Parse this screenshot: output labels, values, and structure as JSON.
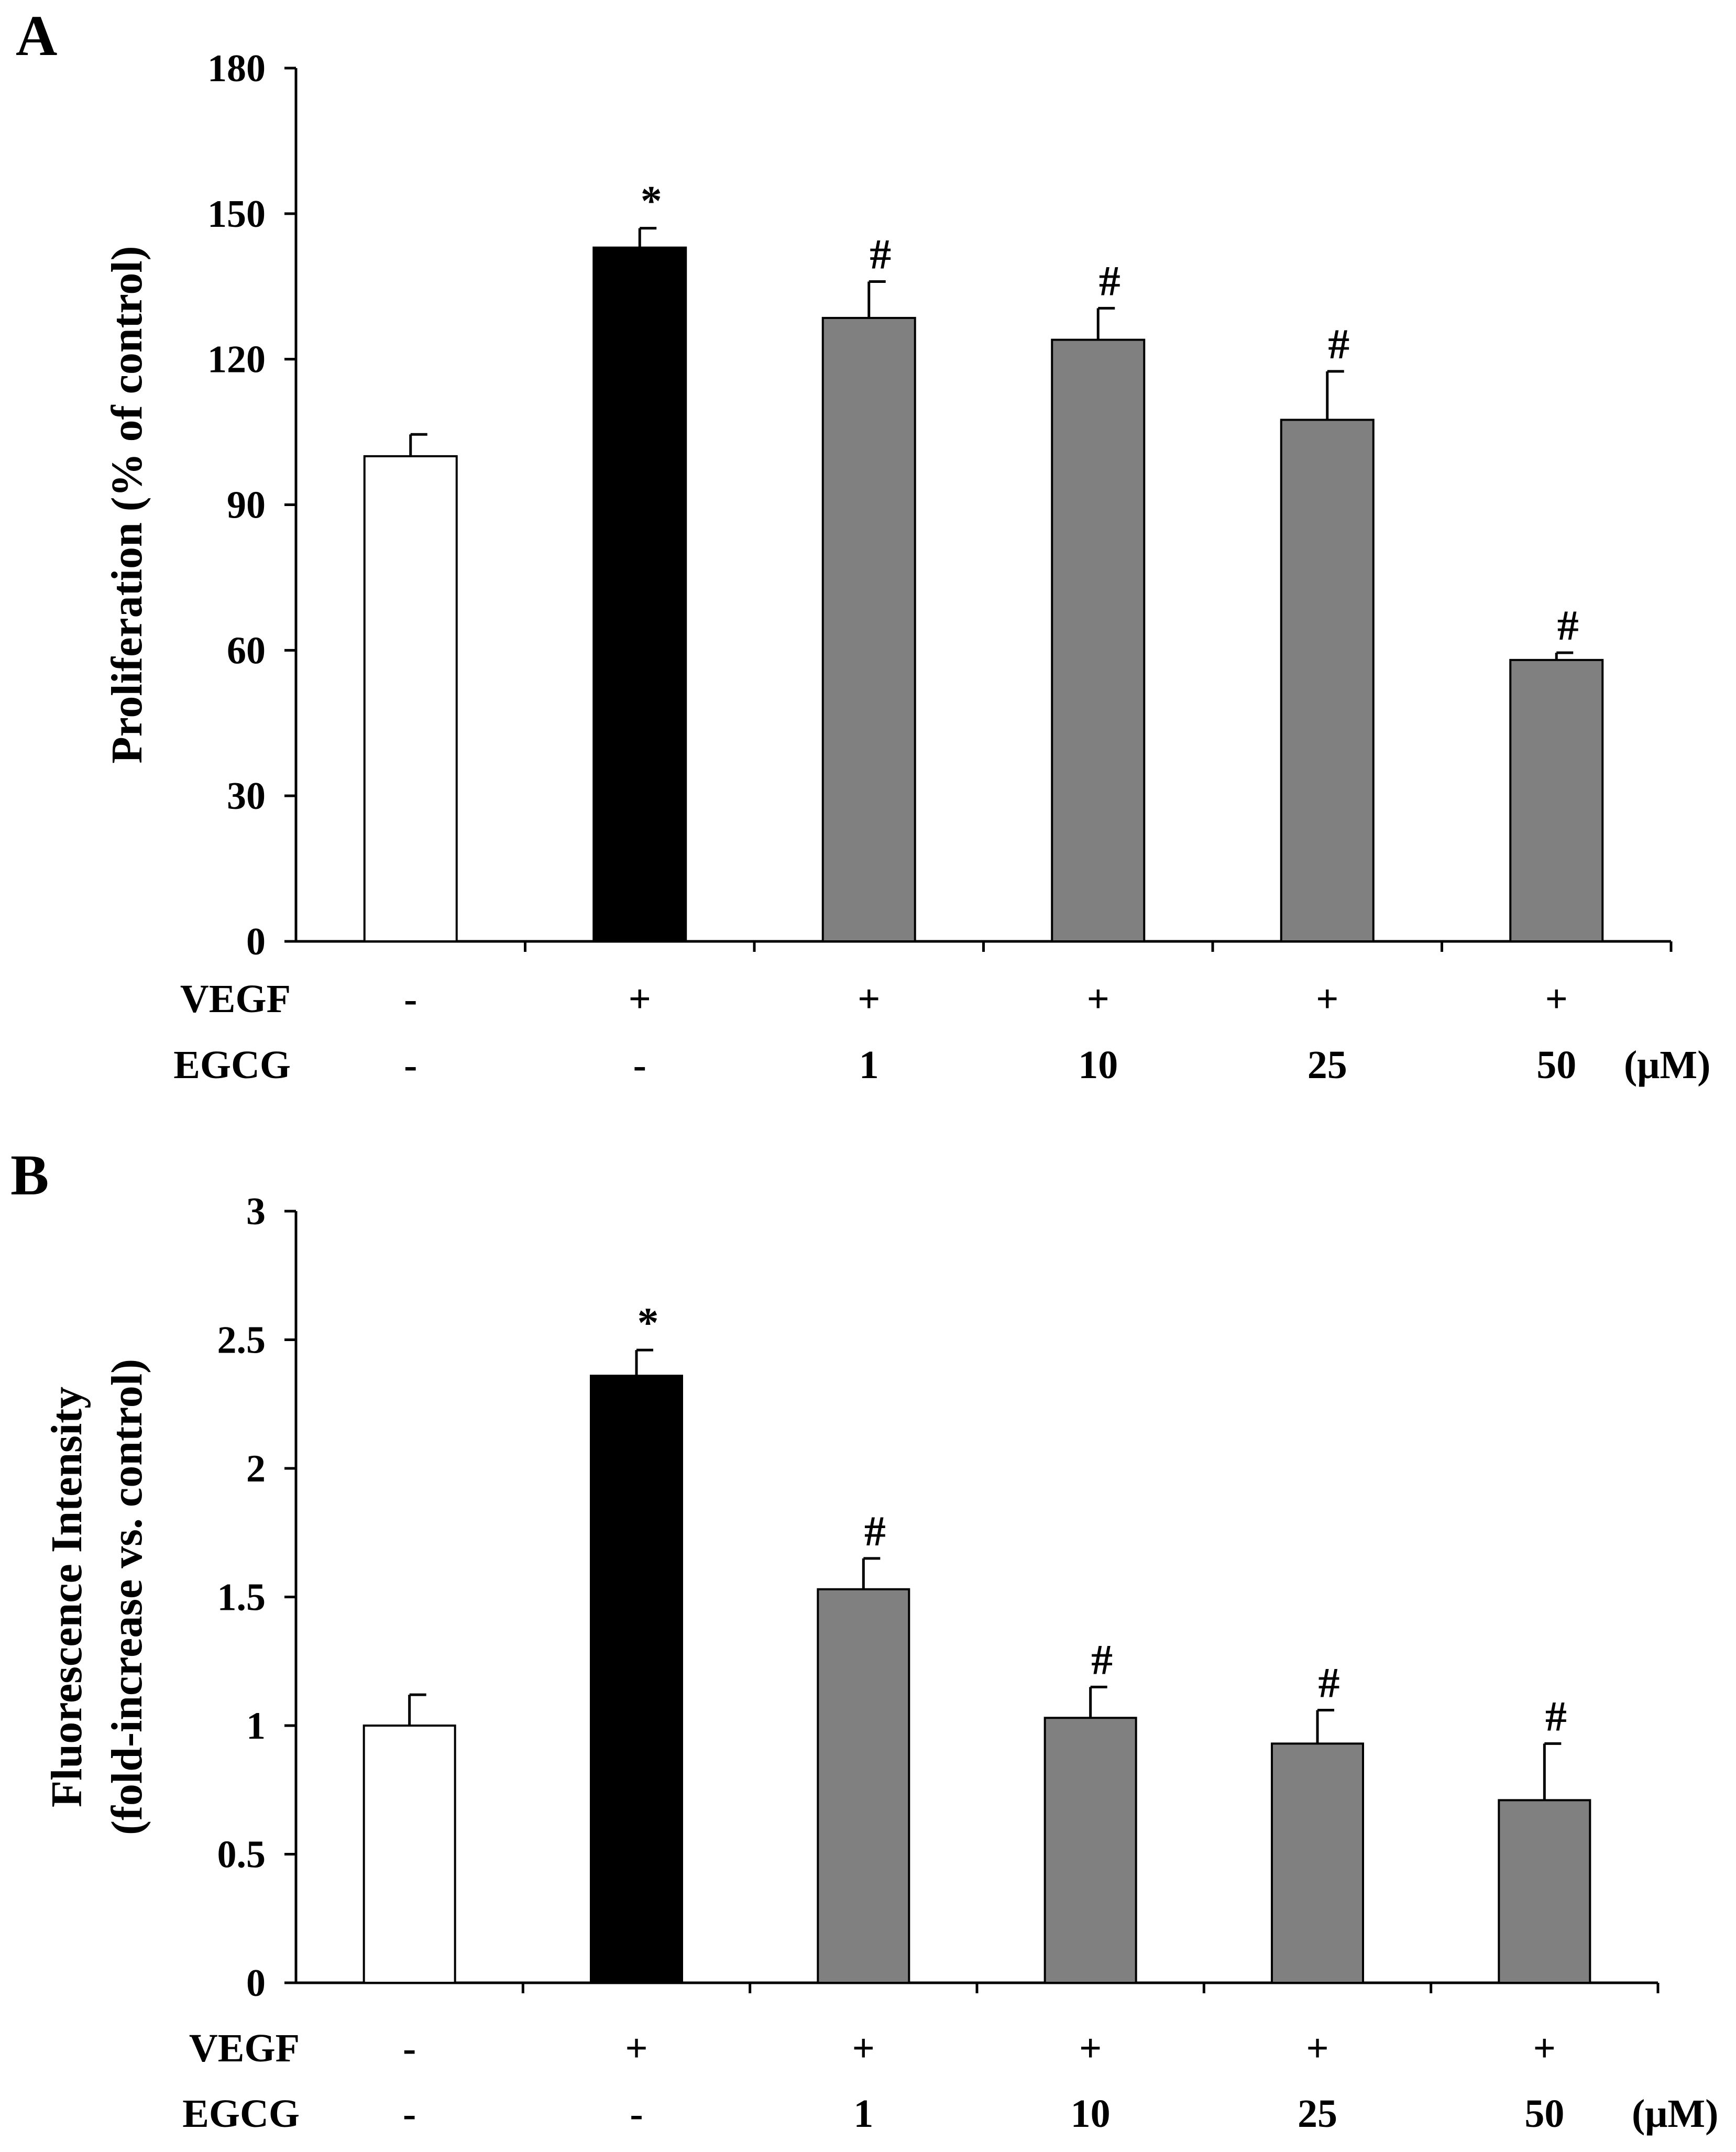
{
  "colors": {
    "control": "#ffffff",
    "vegf": "#000000",
    "egcg": "#808080",
    "axis": "#000000"
  },
  "chart_data": [
    {
      "panel": "A",
      "type": "bar",
      "ylabel": "Proliferation (% of control)",
      "ylim": [
        0,
        180
      ],
      "yticks": [
        "0",
        "30",
        "60",
        "90",
        "120",
        "150",
        "180"
      ],
      "categories": [
        "control",
        "VEGF",
        "VEGF + EGCG 1",
        "VEGF + EGCG 10",
        "VEGF + EGCG 25",
        "VEGF + EGCG 50"
      ],
      "values": [
        100,
        143,
        128.5,
        124,
        107.5,
        58
      ],
      "errors": [
        4.5,
        4,
        7.5,
        6.5,
        10,
        1.5
      ],
      "fill": [
        "control",
        "vegf",
        "egcg",
        "egcg",
        "egcg",
        "egcg"
      ],
      "marks": [
        "",
        "*",
        "#",
        "#",
        "#",
        "#"
      ],
      "rows": [
        {
          "label": "VEGF",
          "values": [
            "-",
            "+",
            "+",
            "+",
            "+",
            "+"
          ],
          "unit": ""
        },
        {
          "label": "EGCG",
          "values": [
            "-",
            "-",
            "1",
            "10",
            "25",
            "50"
          ],
          "unit": "(μM)"
        }
      ]
    },
    {
      "panel": "B",
      "type": "bar",
      "ylabel": [
        "Fluorescence Intensity",
        "(fold-increase vs. control)"
      ],
      "ylim": [
        0,
        3
      ],
      "yticks": [
        "0",
        "0.5",
        "1",
        "1.5",
        "2",
        "2.5",
        "3"
      ],
      "categories": [
        "control",
        "VEGF",
        "VEGF + EGCG 1",
        "VEGF + EGCG 10",
        "VEGF + EGCG 25",
        "VEGF + EGCG 50"
      ],
      "values": [
        1.0,
        2.36,
        1.53,
        1.03,
        0.93,
        0.71
      ],
      "errors": [
        0.12,
        0.1,
        0.12,
        0.12,
        0.13,
        0.22
      ],
      "fill": [
        "control",
        "vegf",
        "egcg",
        "egcg",
        "egcg",
        "egcg"
      ],
      "marks": [
        "",
        "*",
        "#",
        "#",
        "#",
        "#"
      ],
      "rows": [
        {
          "label": "VEGF",
          "values": [
            "-",
            "+",
            "+",
            "+",
            "+",
            "+"
          ],
          "unit": ""
        },
        {
          "label": "EGCG",
          "values": [
            "-",
            "-",
            "1",
            "10",
            "25",
            "50"
          ],
          "unit": "(μM)"
        }
      ]
    }
  ]
}
